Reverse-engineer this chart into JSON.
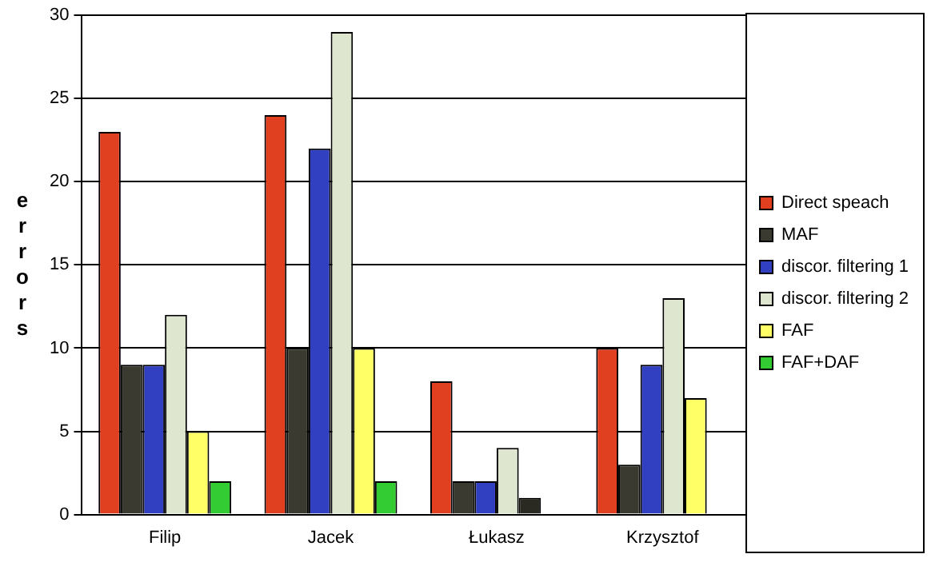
{
  "chart_data": {
    "type": "bar",
    "ylabel": "errors",
    "categories": [
      "Filip",
      "Jacek",
      "Łukasz",
      "Krzysztof"
    ],
    "series": [
      {
        "name": "Direct speach",
        "color": "#e04020",
        "values": [
          23,
          24,
          8,
          10
        ]
      },
      {
        "name": "MAF",
        "color": "#3a3a30",
        "values": [
          9,
          10,
          2,
          3
        ]
      },
      {
        "name": "discor. filtering 1",
        "color": "#3040c0",
        "values": [
          9,
          22,
          2,
          9
        ]
      },
      {
        "name": "discor. filtering 2",
        "color": "#dfe6cf",
        "values": [
          12,
          29,
          4,
          13
        ]
      },
      {
        "name": "FAF",
        "color": "#ffff66",
        "colors": [
          "#ffff66",
          "#ffff66",
          "#2a2a22",
          "#ffff66"
        ],
        "values": [
          5,
          10,
          1,
          7
        ]
      },
      {
        "name": "FAF+DAF",
        "color": "#33cc33",
        "values": [
          2,
          2,
          null,
          null
        ]
      }
    ],
    "ylim": [
      0,
      30
    ],
    "yticks": [
      0,
      5,
      10,
      15,
      20,
      25,
      30
    ],
    "grid": "y",
    "legend": "right"
  }
}
